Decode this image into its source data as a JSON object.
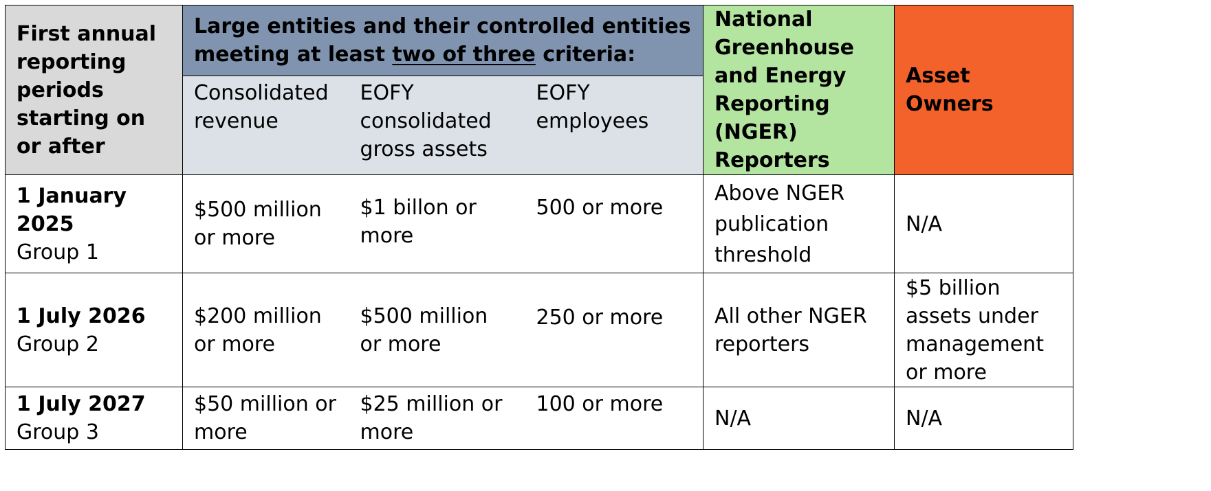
{
  "colors": {
    "first_col_header_bg": "#d9d9d9",
    "large_entities_header_bg": "#8094b0",
    "criteria_subheader_bg": "#dce1e8",
    "nger_header_bg": "#b3e5a1",
    "asset_owners_header_bg": "#f4622b",
    "body_bg": "#ffffff"
  },
  "header": {
    "first_col": "First annual reporting periods starting on or after",
    "large_entities": {
      "prefix": "Large entities and their controlled entities meeting at least ",
      "emphasis": "two of three",
      "suffix": " criteria:"
    },
    "criteria": [
      "Consolidated revenue",
      "EOFY consolidated gross assets",
      "EOFY employees"
    ],
    "nger": "National Greenhouse and Energy Reporting (NGER) Reporters",
    "asset_owners": "Asset Owners"
  },
  "rows": [
    {
      "date": "1 January 2025",
      "group": "Group 1",
      "revenue": "$500 million or more",
      "assets": "$1 billon or more",
      "employees": "500 or more",
      "nger": "Above NGER publication threshold",
      "asset_owners": "N/A"
    },
    {
      "date": "1 July 2026",
      "group": "Group 2",
      "revenue": "$200 million or more",
      "assets": "$500 million or more",
      "employees": "250 or more",
      "nger": "All other NGER reporters",
      "asset_owners": "$5 billion assets under management or more"
    },
    {
      "date": "1 July 2027",
      "group": "Group 3",
      "revenue": "$50 million or more",
      "assets": "$25 million or more",
      "employees": "100 or more",
      "nger": "N/A",
      "asset_owners": "N/A"
    }
  ]
}
